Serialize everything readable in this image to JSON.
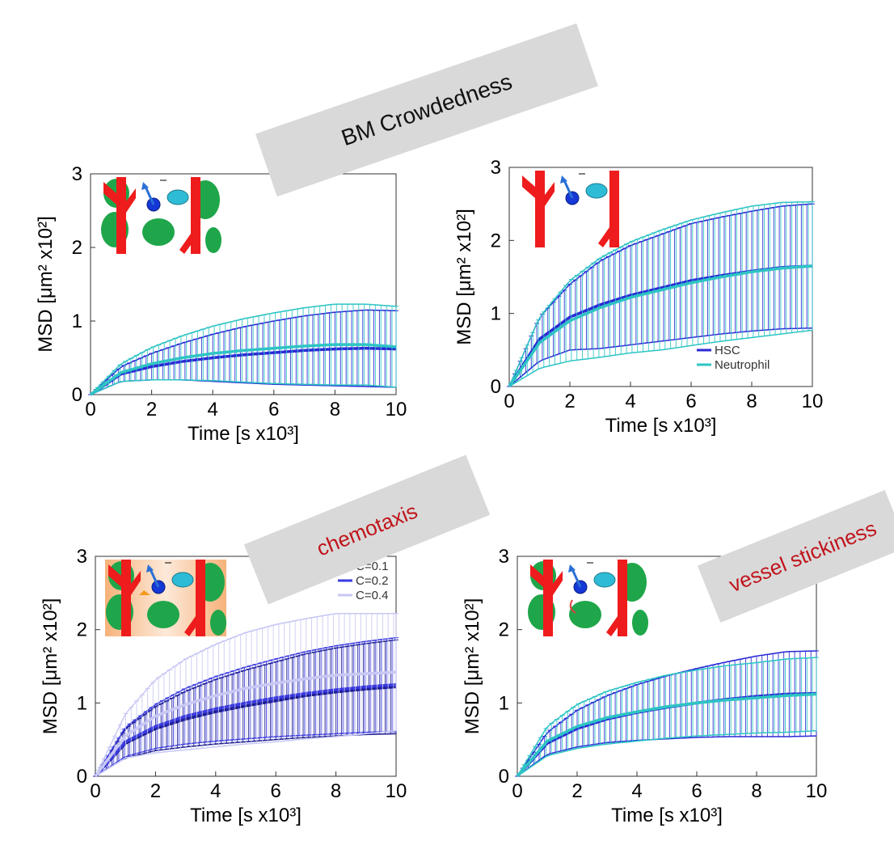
{
  "annotations": {
    "bm_crowdedness": "BM Crowdedness",
    "chemotaxis": "chemotaxis",
    "vessel_stickiness": "vessel stickiness"
  },
  "colors": {
    "hsc": "#2a2ad6",
    "neutrophil": "#2ec4c4",
    "c01": "#1a1a8c",
    "c02": "#3a3ae0",
    "c04": "#c8c8f5",
    "vessel": "#ee1c1c",
    "cell_body": "#1fa64a",
    "label_bg": "#d9d9d9",
    "annotation_red": "#c0141c"
  },
  "chart_data": [
    {
      "type": "line",
      "xlabel": "Time [s x10³]",
      "ylabel": "MSD [μm² x10²]",
      "xlim": [
        0,
        10
      ],
      "ylim": [
        0,
        3
      ],
      "xticks": [
        "0",
        "2",
        "4",
        "6",
        "8",
        "10"
      ],
      "yticks": [
        "0",
        "1",
        "2",
        "3"
      ],
      "legend": [],
      "series": [
        {
          "color_key": "hsc",
          "x": [
            0,
            1,
            2,
            3,
            4,
            5,
            6,
            7,
            8,
            9,
            10
          ],
          "y": [
            0,
            0.28,
            0.38,
            0.45,
            0.5,
            0.54,
            0.57,
            0.6,
            0.62,
            0.63,
            0.62
          ],
          "err": [
            0,
            0.1,
            0.18,
            0.25,
            0.32,
            0.38,
            0.43,
            0.47,
            0.5,
            0.52,
            0.52
          ]
        },
        {
          "color_key": "neutrophil",
          "x": [
            0,
            1,
            2,
            3,
            4,
            5,
            6,
            7,
            8,
            9,
            10
          ],
          "y": [
            0,
            0.3,
            0.42,
            0.5,
            0.56,
            0.6,
            0.63,
            0.66,
            0.68,
            0.68,
            0.65
          ],
          "err": [
            0,
            0.12,
            0.22,
            0.3,
            0.37,
            0.43,
            0.48,
            0.52,
            0.55,
            0.55,
            0.55
          ]
        }
      ]
    },
    {
      "type": "line",
      "xlabel": "Time [s x10³]",
      "ylabel": "MSD [μm² x10²]",
      "xlim": [
        0,
        10
      ],
      "ylim": [
        0,
        3
      ],
      "xticks": [
        "0",
        "2",
        "4",
        "6",
        "8",
        "10"
      ],
      "yticks": [
        "0",
        "1",
        "2",
        "3"
      ],
      "legend": [
        "HSC",
        "Neutrophil"
      ],
      "series": [
        {
          "name": "HSC",
          "color_key": "hsc",
          "x": [
            0,
            1,
            2,
            3,
            4,
            5,
            6,
            7,
            8,
            9,
            10
          ],
          "y": [
            0,
            0.65,
            0.95,
            1.12,
            1.25,
            1.35,
            1.45,
            1.52,
            1.58,
            1.63,
            1.65
          ],
          "err": [
            0,
            0.3,
            0.45,
            0.6,
            0.68,
            0.73,
            0.78,
            0.8,
            0.82,
            0.84,
            0.85
          ]
        },
        {
          "name": "Neutrophil",
          "color_key": "neutrophil",
          "x": [
            0,
            1,
            2,
            3,
            4,
            5,
            6,
            7,
            8,
            9,
            10
          ],
          "y": [
            0,
            0.6,
            0.9,
            1.08,
            1.22,
            1.32,
            1.42,
            1.5,
            1.57,
            1.62,
            1.65
          ],
          "err": [
            0,
            0.35,
            0.55,
            0.68,
            0.76,
            0.82,
            0.86,
            0.88,
            0.9,
            0.9,
            0.88
          ]
        }
      ]
    },
    {
      "type": "line",
      "xlabel": "Time [s x10³]",
      "ylabel": "MSD [μm² x10²]",
      "xlim": [
        0,
        10
      ],
      "ylim": [
        0,
        3
      ],
      "xticks": [
        "0",
        "2",
        "4",
        "6",
        "8",
        "10"
      ],
      "yticks": [
        "0",
        "1",
        "2",
        "3"
      ],
      "legend": [
        "C=0.1",
        "C=0.2",
        "C=0.4"
      ],
      "series": [
        {
          "name": "C=0.1",
          "color_key": "c01",
          "x": [
            0,
            1,
            2,
            3,
            4,
            5,
            6,
            7,
            8,
            9,
            10
          ],
          "y": [
            0,
            0.45,
            0.65,
            0.78,
            0.88,
            0.96,
            1.03,
            1.1,
            1.15,
            1.19,
            1.22
          ],
          "err": [
            0,
            0.2,
            0.3,
            0.38,
            0.44,
            0.49,
            0.53,
            0.57,
            0.6,
            0.62,
            0.64
          ]
        },
        {
          "name": "C=0.2",
          "color_key": "c02",
          "x": [
            0,
            1,
            2,
            3,
            4,
            5,
            6,
            7,
            8,
            9,
            10
          ],
          "y": [
            0,
            0.47,
            0.68,
            0.82,
            0.92,
            1.0,
            1.07,
            1.13,
            1.18,
            1.22,
            1.25
          ],
          "err": [
            0,
            0.2,
            0.3,
            0.38,
            0.44,
            0.49,
            0.53,
            0.57,
            0.6,
            0.62,
            0.64
          ]
        },
        {
          "name": "C=0.4",
          "color_key": "c04",
          "x": [
            0,
            1,
            2,
            3,
            4,
            5,
            6,
            7,
            8,
            9,
            10
          ],
          "y": [
            0,
            0.55,
            0.82,
            0.98,
            1.1,
            1.2,
            1.27,
            1.33,
            1.38,
            1.4,
            1.42
          ],
          "err": [
            0,
            0.3,
            0.5,
            0.62,
            0.7,
            0.76,
            0.8,
            0.82,
            0.84,
            0.82,
            0.8
          ]
        }
      ]
    },
    {
      "type": "line",
      "xlabel": "Time [s x10³]",
      "ylabel": "MSD [μm² x10²]",
      "xlim": [
        0,
        10
      ],
      "ylim": [
        0,
        3
      ],
      "xticks": [
        "0",
        "2",
        "4",
        "6",
        "8",
        "10"
      ],
      "yticks": [
        "0",
        "1",
        "2",
        "3"
      ],
      "legend": [],
      "series": [
        {
          "color_key": "hsc",
          "x": [
            0,
            1,
            2,
            3,
            4,
            5,
            6,
            7,
            8,
            9,
            10
          ],
          "y": [
            0,
            0.45,
            0.65,
            0.78,
            0.87,
            0.94,
            1.0,
            1.05,
            1.09,
            1.12,
            1.13
          ],
          "err": [
            0,
            0.15,
            0.25,
            0.32,
            0.38,
            0.43,
            0.47,
            0.51,
            0.55,
            0.58,
            0.58
          ]
        },
        {
          "color_key": "neutrophil",
          "x": [
            0,
            1,
            2,
            3,
            4,
            5,
            6,
            7,
            8,
            9,
            10
          ],
          "y": [
            0,
            0.48,
            0.68,
            0.8,
            0.88,
            0.95,
            1.0,
            1.04,
            1.07,
            1.1,
            1.12
          ],
          "err": [
            0,
            0.2,
            0.3,
            0.36,
            0.4,
            0.43,
            0.45,
            0.47,
            0.48,
            0.5,
            0.5
          ]
        }
      ]
    }
  ]
}
